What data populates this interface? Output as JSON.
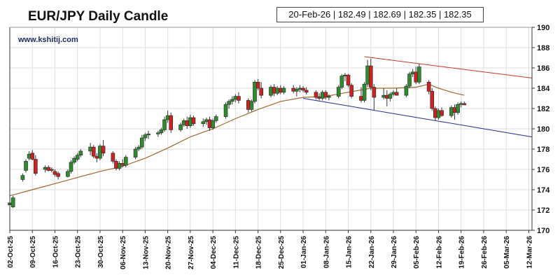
{
  "title": "EUR/JPY Daily Candle",
  "watermark": "www.kshitij.com",
  "info_box": "20-Feb-26 | 182.49 | 182.69 | 182.35 | 182.35",
  "colors": {
    "up": "#2e8b2e",
    "down": "#cc2222",
    "ma": "#a0672a",
    "upper_trendline": "#c0392b",
    "lower_trendline": "#1f2a8a",
    "grid": "#dddddd"
  },
  "chart_data": {
    "type": "candlestick",
    "title": "EUR/JPY Daily Candle",
    "ylim": [
      170,
      190
    ],
    "y_ticks": [
      170,
      172,
      174,
      176,
      178,
      180,
      182,
      184,
      186,
      188,
      190
    ],
    "x_tick_labels": [
      "02-Oct-25",
      "09-Oct-25",
      "16-Oct-25",
      "23-Oct-25",
      "30-Oct-25",
      "06-Nov-25",
      "13-Nov-25",
      "20-Nov-25",
      "27-Nov-25",
      "04-Dec-25",
      "11-Dec-25",
      "18-Dec-25",
      "25-Dec-25",
      "01-Jan-26",
      "08-Jan-26",
      "15-Jan-26",
      "22-Jan-26",
      "29-Jan-26",
      "05-Feb-26",
      "12-Feb-26",
      "19-Feb-26",
      "26-Feb-26",
      "05-Mar-26",
      "12-Mar-26"
    ],
    "grid": true,
    "candles": [
      {
        "d": "02-Oct-25",
        "o": 172.5,
        "h": 172.9,
        "l": 172.3,
        "c": 172.7
      },
      {
        "d": "03-Oct-25",
        "o": 172.3,
        "h": 173.4,
        "l": 172.2,
        "c": 173.2
      },
      {
        "d": "06-Oct-25",
        "o": 175.0,
        "h": 175.6,
        "l": 174.8,
        "c": 175.4
      },
      {
        "d": "07-Oct-25",
        "o": 175.9,
        "h": 177.0,
        "l": 175.7,
        "c": 176.8
      },
      {
        "d": "08-Oct-25",
        "o": 177.1,
        "h": 177.8,
        "l": 176.9,
        "c": 177.5
      },
      {
        "d": "09-Oct-25",
        "o": 177.6,
        "h": 177.9,
        "l": 176.9,
        "c": 177.0
      },
      {
        "d": "10-Oct-25",
        "o": 177.0,
        "h": 177.4,
        "l": 175.4,
        "c": 175.6
      },
      {
        "d": "13-Oct-25",
        "o": 176.0,
        "h": 176.4,
        "l": 175.7,
        "c": 176.2
      },
      {
        "d": "14-Oct-25",
        "o": 176.2,
        "h": 176.4,
        "l": 175.8,
        "c": 175.9
      },
      {
        "d": "15-Oct-25",
        "o": 176.0,
        "h": 176.2,
        "l": 175.7,
        "c": 175.9
      },
      {
        "d": "16-Oct-25",
        "o": 175.8,
        "h": 176.0,
        "l": 175.3,
        "c": 175.5
      },
      {
        "d": "17-Oct-25",
        "o": 175.6,
        "h": 175.8,
        "l": 175.0,
        "c": 175.3
      },
      {
        "d": "20-Oct-25",
        "o": 175.3,
        "h": 176.0,
        "l": 175.2,
        "c": 175.8
      },
      {
        "d": "21-Oct-25",
        "o": 175.8,
        "h": 176.9,
        "l": 175.6,
        "c": 176.7
      },
      {
        "d": "22-Oct-25",
        "o": 176.7,
        "h": 177.3,
        "l": 176.5,
        "c": 177.1
      },
      {
        "d": "23-Oct-25",
        "o": 177.0,
        "h": 177.6,
        "l": 176.8,
        "c": 177.4
      },
      {
        "d": "24-Oct-25",
        "o": 177.4,
        "h": 178.0,
        "l": 177.2,
        "c": 177.8
      },
      {
        "d": "27-Oct-25",
        "o": 177.8,
        "h": 178.6,
        "l": 177.4,
        "c": 178.2
      },
      {
        "d": "28-Oct-25",
        "o": 178.2,
        "h": 178.4,
        "l": 177.1,
        "c": 177.3
      },
      {
        "d": "29-Oct-25",
        "o": 177.3,
        "h": 177.6,
        "l": 176.7,
        "c": 177.1
      },
      {
        "d": "30-Oct-25",
        "o": 177.1,
        "h": 178.5,
        "l": 176.9,
        "c": 178.3
      },
      {
        "d": "31-Oct-25",
        "o": 178.3,
        "h": 178.9,
        "l": 177.3,
        "c": 177.6
      },
      {
        "d": "03-Nov-25",
        "o": 177.6,
        "h": 177.8,
        "l": 176.6,
        "c": 176.8
      },
      {
        "d": "04-Nov-25",
        "o": 176.8,
        "h": 177.0,
        "l": 175.9,
        "c": 176.1
      },
      {
        "d": "05-Nov-25",
        "o": 176.1,
        "h": 176.8,
        "l": 175.9,
        "c": 176.6
      },
      {
        "d": "06-Nov-25",
        "o": 176.6,
        "h": 177.0,
        "l": 176.2,
        "c": 176.4
      },
      {
        "d": "07-Nov-25",
        "o": 176.4,
        "h": 177.4,
        "l": 176.2,
        "c": 177.2
      },
      {
        "d": "10-Nov-25",
        "o": 177.2,
        "h": 178.2,
        "l": 177.0,
        "c": 178.0
      },
      {
        "d": "11-Nov-25",
        "o": 178.0,
        "h": 178.4,
        "l": 177.8,
        "c": 178.2
      },
      {
        "d": "12-Nov-25",
        "o": 178.2,
        "h": 179.4,
        "l": 178.0,
        "c": 179.1
      },
      {
        "d": "13-Nov-25",
        "o": 179.1,
        "h": 179.6,
        "l": 178.8,
        "c": 179.4
      },
      {
        "d": "14-Nov-25",
        "o": 179.4,
        "h": 179.8,
        "l": 179.0,
        "c": 179.5
      },
      {
        "d": "17-Nov-25",
        "o": 179.5,
        "h": 179.8,
        "l": 179.2,
        "c": 179.6
      },
      {
        "d": "18-Nov-25",
        "o": 179.6,
        "h": 180.1,
        "l": 179.4,
        "c": 179.9
      },
      {
        "d": "19-Nov-25",
        "o": 179.9,
        "h": 181.2,
        "l": 179.7,
        "c": 180.9
      },
      {
        "d": "20-Nov-25",
        "o": 180.9,
        "h": 181.8,
        "l": 180.6,
        "c": 181.3
      },
      {
        "d": "21-Nov-25",
        "o": 181.3,
        "h": 181.6,
        "l": 179.6,
        "c": 179.9
      },
      {
        "d": "24-Nov-25",
        "o": 179.9,
        "h": 180.6,
        "l": 179.7,
        "c": 180.4
      },
      {
        "d": "25-Nov-25",
        "o": 180.4,
        "h": 181.0,
        "l": 180.2,
        "c": 180.8
      },
      {
        "d": "26-Nov-25",
        "o": 180.8,
        "h": 181.2,
        "l": 180.0,
        "c": 180.3
      },
      {
        "d": "27-Nov-25",
        "o": 180.3,
        "h": 181.4,
        "l": 180.1,
        "c": 181.1
      },
      {
        "d": "28-Nov-25",
        "o": 181.1,
        "h": 181.3,
        "l": 180.3,
        "c": 180.5
      },
      {
        "d": "01-Dec-25",
        "o": 180.5,
        "h": 181.0,
        "l": 180.2,
        "c": 180.7
      },
      {
        "d": "02-Dec-25",
        "o": 180.7,
        "h": 181.1,
        "l": 180.4,
        "c": 180.9
      },
      {
        "d": "03-Dec-25",
        "o": 180.9,
        "h": 181.2,
        "l": 179.8,
        "c": 180.1
      },
      {
        "d": "04-Dec-25",
        "o": 180.1,
        "h": 181.0,
        "l": 179.9,
        "c": 180.8
      },
      {
        "d": "05-Dec-25",
        "o": 180.8,
        "h": 181.4,
        "l": 180.6,
        "c": 181.2
      },
      {
        "d": "08-Dec-25",
        "o": 181.2,
        "h": 182.6,
        "l": 181.0,
        "c": 182.4
      },
      {
        "d": "09-Dec-25",
        "o": 182.4,
        "h": 182.9,
        "l": 182.0,
        "c": 182.7
      },
      {
        "d": "10-Dec-25",
        "o": 182.7,
        "h": 183.2,
        "l": 182.4,
        "c": 182.9
      },
      {
        "d": "11-Dec-25",
        "o": 182.9,
        "h": 183.4,
        "l": 182.6,
        "c": 183.2
      },
      {
        "d": "12-Dec-25",
        "o": 183.2,
        "h": 183.6,
        "l": 182.5,
        "c": 182.8
      },
      {
        "d": "15-Dec-25",
        "o": 182.8,
        "h": 183.0,
        "l": 181.6,
        "c": 181.9
      },
      {
        "d": "16-Dec-25",
        "o": 181.9,
        "h": 182.9,
        "l": 181.7,
        "c": 182.7
      },
      {
        "d": "17-Dec-25",
        "o": 182.7,
        "h": 184.8,
        "l": 182.5,
        "c": 184.6
      },
      {
        "d": "18-Dec-25",
        "o": 184.6,
        "h": 184.9,
        "l": 183.8,
        "c": 184.0
      },
      {
        "d": "19-Dec-25",
        "o": 184.0,
        "h": 184.6,
        "l": 183.0,
        "c": 183.3
      },
      {
        "d": "22-Dec-25",
        "o": 183.3,
        "h": 184.3,
        "l": 183.1,
        "c": 184.1
      },
      {
        "d": "23-Dec-25",
        "o": 184.1,
        "h": 184.4,
        "l": 183.2,
        "c": 183.5
      },
      {
        "d": "24-Dec-25",
        "o": 183.5,
        "h": 184.2,
        "l": 183.3,
        "c": 184.0
      },
      {
        "d": "25-Dec-25",
        "o": 184.0,
        "h": 184.3,
        "l": 183.4,
        "c": 183.6
      },
      {
        "d": "26-Dec-25",
        "o": 183.6,
        "h": 184.2,
        "l": 183.4,
        "c": 184.0
      },
      {
        "d": "29-Dec-25",
        "o": 184.0,
        "h": 184.3,
        "l": 183.5,
        "c": 183.7
      },
      {
        "d": "30-Dec-25",
        "o": 183.7,
        "h": 184.1,
        "l": 183.2,
        "c": 183.9
      },
      {
        "d": "31-Dec-25",
        "o": 183.9,
        "h": 184.3,
        "l": 183.6,
        "c": 184.0
      },
      {
        "d": "01-Jan-26",
        "o": 184.0,
        "h": 184.2,
        "l": 183.6,
        "c": 183.8
      },
      {
        "d": "02-Jan-26",
        "o": 183.8,
        "h": 184.1,
        "l": 183.4,
        "c": 183.6
      },
      {
        "d": "05-Jan-26",
        "o": 183.6,
        "h": 183.8,
        "l": 182.9,
        "c": 183.1
      },
      {
        "d": "06-Jan-26",
        "o": 183.1,
        "h": 183.5,
        "l": 182.8,
        "c": 183.0
      },
      {
        "d": "07-Jan-26",
        "o": 183.0,
        "h": 183.8,
        "l": 182.8,
        "c": 183.6
      },
      {
        "d": "08-Jan-26",
        "o": 183.6,
        "h": 183.8,
        "l": 182.9,
        "c": 183.1
      },
      {
        "d": "09-Jan-26",
        "o": 183.1,
        "h": 183.4,
        "l": 182.8,
        "c": 183.2
      },
      {
        "d": "12-Jan-26",
        "o": 183.2,
        "h": 184.3,
        "l": 183.0,
        "c": 184.1
      },
      {
        "d": "13-Jan-26",
        "o": 184.1,
        "h": 185.4,
        "l": 183.9,
        "c": 185.2
      },
      {
        "d": "14-Jan-26",
        "o": 185.2,
        "h": 185.5,
        "l": 184.7,
        "c": 185.3
      },
      {
        "d": "15-Jan-26",
        "o": 185.3,
        "h": 185.4,
        "l": 184.1,
        "c": 184.3
      },
      {
        "d": "16-Jan-26",
        "o": 184.3,
        "h": 184.5,
        "l": 183.0,
        "c": 183.2
      },
      {
        "d": "19-Jan-26",
        "o": 183.2,
        "h": 184.1,
        "l": 182.6,
        "c": 182.8
      },
      {
        "d": "20-Jan-26",
        "o": 182.8,
        "h": 184.6,
        "l": 182.6,
        "c": 184.4
      },
      {
        "d": "21-Jan-26",
        "o": 184.4,
        "h": 186.8,
        "l": 184.1,
        "c": 186.2
      },
      {
        "d": "22-Jan-26",
        "o": 186.2,
        "h": 186.9,
        "l": 183.8,
        "c": 184.1
      },
      {
        "d": "23-Jan-26",
        "o": 184.1,
        "h": 184.4,
        "l": 181.8,
        "c": 183.1
      },
      {
        "d": "26-Jan-26",
        "o": 183.1,
        "h": 184.0,
        "l": 182.9,
        "c": 183.3
      },
      {
        "d": "27-Jan-26",
        "o": 183.3,
        "h": 183.8,
        "l": 182.2,
        "c": 183.0
      },
      {
        "d": "28-Jan-26",
        "o": 183.0,
        "h": 183.6,
        "l": 182.7,
        "c": 183.4
      },
      {
        "d": "29-Jan-26",
        "o": 183.4,
        "h": 183.8,
        "l": 183.2,
        "c": 183.6
      },
      {
        "d": "30-Jan-26",
        "o": 183.6,
        "h": 184.0,
        "l": 183.3,
        "c": 183.3
      },
      {
        "d": "02-Feb-26",
        "o": 183.3,
        "h": 184.4,
        "l": 183.1,
        "c": 184.2
      },
      {
        "d": "03-Feb-26",
        "o": 184.2,
        "h": 185.6,
        "l": 184.0,
        "c": 185.4
      },
      {
        "d": "04-Feb-26",
        "o": 185.4,
        "h": 185.9,
        "l": 185.1,
        "c": 185.6
      },
      {
        "d": "05-Feb-26",
        "o": 185.6,
        "h": 186.1,
        "l": 184.4,
        "c": 184.6
      },
      {
        "d": "06-Feb-26",
        "o": 184.6,
        "h": 186.4,
        "l": 184.4,
        "c": 186.1
      },
      {
        "d": "09-Feb-26",
        "o": 184.6,
        "h": 184.8,
        "l": 183.4,
        "c": 183.7
      },
      {
        "d": "10-Feb-26",
        "o": 183.7,
        "h": 184.0,
        "l": 181.8,
        "c": 182.0
      },
      {
        "d": "11-Feb-26",
        "o": 182.0,
        "h": 182.2,
        "l": 180.8,
        "c": 181.1
      },
      {
        "d": "12-Feb-26",
        "o": 181.1,
        "h": 182.0,
        "l": 180.9,
        "c": 181.8
      },
      {
        "d": "13-Feb-26",
        "o": 181.8,
        "h": 182.1,
        "l": 181.2,
        "c": 181.3
      },
      {
        "d": "16-Feb-26",
        "o": 181.3,
        "h": 182.3,
        "l": 181.1,
        "c": 182.1
      },
      {
        "d": "17-Feb-26",
        "o": 182.1,
        "h": 182.4,
        "l": 180.9,
        "c": 181.6
      },
      {
        "d": "18-Feb-26",
        "o": 181.6,
        "h": 182.6,
        "l": 181.4,
        "c": 182.4
      },
      {
        "d": "19-Feb-26",
        "o": 182.4,
        "h": 182.7,
        "l": 182.1,
        "c": 182.5
      },
      {
        "d": "20-Feb-26",
        "o": 182.49,
        "h": 182.69,
        "l": 182.35,
        "c": 182.35
      }
    ],
    "moving_average": [
      {
        "d": "02-Oct-25",
        "v": 173.4
      },
      {
        "d": "09-Oct-25",
        "v": 174.0
      },
      {
        "d": "16-Oct-25",
        "v": 174.6
      },
      {
        "d": "23-Oct-25",
        "v": 175.2
      },
      {
        "d": "30-Oct-25",
        "v": 175.8
      },
      {
        "d": "06-Nov-25",
        "v": 176.3
      },
      {
        "d": "13-Nov-25",
        "v": 177.1
      },
      {
        "d": "20-Nov-25",
        "v": 178.1
      },
      {
        "d": "27-Nov-25",
        "v": 179.2
      },
      {
        "d": "04-Dec-25",
        "v": 180.0
      },
      {
        "d": "11-Dec-25",
        "v": 181.0
      },
      {
        "d": "18-Dec-25",
        "v": 181.9
      },
      {
        "d": "25-Dec-25",
        "v": 182.7
      },
      {
        "d": "01-Jan-26",
        "v": 183.1
      },
      {
        "d": "08-Jan-26",
        "v": 183.2
      },
      {
        "d": "15-Jan-26",
        "v": 183.6
      },
      {
        "d": "22-Jan-26",
        "v": 184.0
      },
      {
        "d": "29-Jan-26",
        "v": 184.0
      },
      {
        "d": "05-Feb-26",
        "v": 184.1
      },
      {
        "d": "09-Feb-26",
        "v": 184.4
      },
      {
        "d": "12-Feb-26",
        "v": 184.0
      },
      {
        "d": "16-Feb-26",
        "v": 183.6
      },
      {
        "d": "20-Feb-26",
        "v": 183.3
      }
    ],
    "trendlines": [
      {
        "name": "upper",
        "from": {
          "d": "20-Jan-26",
          "v": 187.1
        },
        "to": {
          "d": "13-Mar-26",
          "v": 185.0
        }
      },
      {
        "name": "lower",
        "from": {
          "d": "01-Jan-26",
          "v": 183.0
        },
        "to": {
          "d": "13-Mar-26",
          "v": 179.2
        }
      }
    ]
  }
}
